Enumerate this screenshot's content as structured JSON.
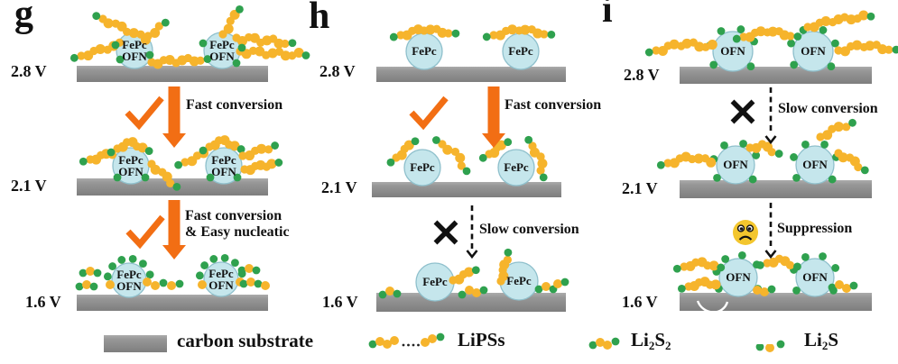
{
  "colors": {
    "orange": "#F26E14",
    "yellow": "#F6B42C",
    "green": "#2FA14E",
    "dot_black": "#222222",
    "circle_fill": "#C5E6EC",
    "circle_stroke": "#8FC0CC",
    "substrate_light": "#ABABAB",
    "substrate_dark": "#7E7E7E",
    "text": "#111111",
    "face_yellow": "#F3C62E",
    "white": "#FFFFFF"
  },
  "panels": [
    {
      "label": "g",
      "voltages": [
        "2.8 V",
        "2.1 V",
        "1.6 V"
      ],
      "catalyst": [
        "FePc",
        "OFN"
      ],
      "transitions": [
        {
          "icon": "checkmark",
          "arrow": "solid-orange",
          "label": "Fast conversion"
        },
        {
          "icon": "checkmark",
          "arrow": "solid-orange",
          "label": "Fast conversion",
          "label2": "& Easy nucleatic"
        }
      ]
    },
    {
      "label": "h",
      "voltages": [
        "2.8 V",
        "2.1 V",
        "1.6 V"
      ],
      "catalyst": [
        "FePc"
      ],
      "transitions": [
        {
          "icon": "checkmark",
          "arrow": "solid-orange",
          "label": "Fast conversion"
        },
        {
          "icon": "cross",
          "arrow": "dashed-black",
          "label": "Slow conversion"
        }
      ]
    },
    {
      "label": "i",
      "voltages": [
        "2.8 V",
        "2.1 V",
        "1.6 V"
      ],
      "catalyst": [
        "OFN"
      ],
      "transitions": [
        {
          "icon": "cross",
          "arrow": "dashed-black",
          "label": "Slow conversion"
        },
        {
          "icon": "sad-face",
          "arrow": "dashed-black",
          "label": "Suppression"
        }
      ]
    }
  ],
  "legend": {
    "carbon": "carbon substrate",
    "lipss": "LiPSs",
    "li2s2": [
      "Li",
      "2",
      "S",
      "2"
    ],
    "li2s": [
      "Li",
      "2",
      "S"
    ]
  }
}
